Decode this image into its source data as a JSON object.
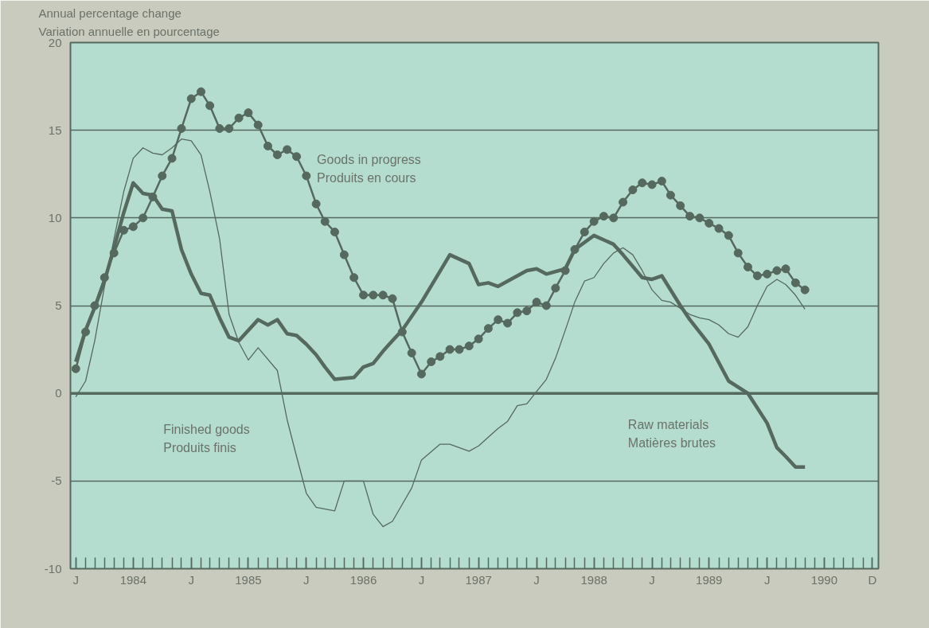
{
  "chart_data": {
    "type": "line",
    "ylabel": "Annual percentage change\nVariation annuelle en pourcentage",
    "xlim": [
      "1983-12-15",
      "1990-12-20"
    ],
    "xticks": [
      {
        "value": "1984-01",
        "label": "J"
      },
      {
        "value": "1985-01",
        "label": "J"
      },
      {
        "value": "1986-01",
        "label": "J"
      },
      {
        "value": "1987-01",
        "label": "J"
      },
      {
        "value": "1988-01",
        "label": "J"
      },
      {
        "value": "1989-01",
        "label": "J"
      },
      {
        "value": "1990-01",
        "label": "J"
      },
      {
        "value": "1990-12",
        "label": "D"
      },
      {
        "value": "1984-07",
        "label": "1984"
      },
      {
        "value": "1985-07",
        "label": "1985"
      },
      {
        "value": "1986-07",
        "label": "1986"
      },
      {
        "value": "1987-07",
        "label": "1987"
      },
      {
        "value": "1988-07",
        "label": "1988"
      },
      {
        "value": "1989-07",
        "label": "1989"
      },
      {
        "value": "1990-07",
        "label": "1990"
      }
    ],
    "ylim": [
      -10,
      20
    ],
    "yticks": [
      -10,
      -5,
      0,
      5,
      10,
      15,
      20
    ],
    "grid": "y",
    "ref_lines": [
      {
        "axis": "y",
        "value": 0,
        "color": "#56695f"
      }
    ],
    "series": [
      {
        "color": "#56695f",
        "marker": "circle",
        "line_style": "solid",
        "x": [
          "1984-01",
          "1984-02",
          "1984-03",
          "1984-04",
          "1984-05",
          "1984-06",
          "1984-07",
          "1984-08",
          "1984-09",
          "1984-10",
          "1984-11",
          "1984-12",
          "1985-01",
          "1985-02",
          "1985-03",
          "1985-04",
          "1985-05",
          "1985-06",
          "1985-07",
          "1985-08",
          "1985-09",
          "1985-10",
          "1985-11",
          "1985-12",
          "1986-01",
          "1986-02",
          "1986-03",
          "1986-04",
          "1986-05",
          "1986-06",
          "1986-07",
          "1986-08",
          "1986-09",
          "1986-10",
          "1986-11",
          "1986-12",
          "1987-01",
          "1987-02",
          "1987-03",
          "1987-04",
          "1987-05",
          "1987-06",
          "1987-07",
          "1987-08",
          "1987-09",
          "1987-10",
          "1987-11",
          "1987-12",
          "1988-01",
          "1988-02",
          "1988-03",
          "1988-04",
          "1988-05",
          "1988-06",
          "1988-07",
          "1988-08",
          "1988-09",
          "1988-10",
          "1988-11",
          "1988-12",
          "1989-01",
          "1989-02",
          "1989-03",
          "1989-04",
          "1989-05",
          "1989-06",
          "1989-07",
          "1989-08",
          "1989-09",
          "1989-10",
          "1989-11",
          "1989-12",
          "1990-01",
          "1990-02",
          "1990-03",
          "1990-04",
          "1990-05"
        ],
        "values": [
          1.4,
          3.5,
          5.0,
          6.6,
          8.0,
          9.3,
          9.5,
          10.0,
          11.2,
          12.4,
          13.4,
          15.1,
          16.8,
          17.2,
          16.4,
          15.1,
          15.1,
          15.7,
          16.0,
          15.3,
          14.1,
          13.6,
          13.9,
          13.5,
          12.4,
          10.8,
          9.8,
          9.2,
          7.9,
          6.6,
          5.6,
          5.6,
          5.6,
          5.4,
          3.5,
          2.3,
          1.1,
          1.8,
          2.1,
          2.5,
          2.5,
          2.7,
          3.1,
          3.7,
          4.2,
          4.0,
          4.6,
          4.7,
          5.2,
          5.0,
          6.0,
          7.0,
          8.2,
          9.2,
          9.8,
          10.1,
          10.0,
          10.9,
          11.6,
          12.0,
          11.9,
          12.1,
          11.3,
          10.7,
          10.1,
          10.0,
          9.7,
          9.4,
          9.0,
          8.0,
          7.2,
          6.7,
          6.8,
          7.0,
          7.1,
          6.3,
          5.9
        ]
      },
      {
        "color": "#56695f",
        "marker": "none",
        "line_style": "solid",
        "x": [
          "1984-01",
          "1984-02",
          "1984-03",
          "1984-04",
          "1984-05",
          "1984-06",
          "1984-07",
          "1984-08",
          "1984-09",
          "1984-10",
          "1984-11",
          "1984-12",
          "1985-01",
          "1985-02",
          "1985-03",
          "1985-04",
          "1985-05",
          "1985-06",
          "1985-08",
          "1985-09",
          "1985-10",
          "1985-11",
          "1985-12",
          "1986-01",
          "1986-02",
          "1986-03",
          "1986-04",
          "1986-06",
          "1986-07",
          "1986-08",
          "1986-09",
          "1986-10",
          "1986-11",
          "1987-01",
          "1987-04",
          "1987-06",
          "1987-07",
          "1987-08",
          "1987-09",
          "1987-12",
          "1988-01",
          "1988-02",
          "1988-04",
          "1988-05",
          "1988-07",
          "1988-09",
          "1988-10",
          "1988-12",
          "1989-01",
          "1989-02",
          "1989-04",
          "1989-05",
          "1989-07",
          "1989-09",
          "1989-11",
          "1990-01",
          "1990-02",
          "1990-03",
          "1990-04",
          "1990-05"
        ],
        "values": [
          1.8,
          3.6,
          4.9,
          6.4,
          8.3,
          10.3,
          12.0,
          11.4,
          11.3,
          10.5,
          10.4,
          8.2,
          6.8,
          5.7,
          5.6,
          4.3,
          3.2,
          3.0,
          4.2,
          3.9,
          4.2,
          3.4,
          3.3,
          2.8,
          2.2,
          1.5,
          0.8,
          0.9,
          1.5,
          1.7,
          2.4,
          3.0,
          3.6,
          5.2,
          7.9,
          7.4,
          6.2,
          6.3,
          6.1,
          7.0,
          7.1,
          6.8,
          7.1,
          8.2,
          9.0,
          8.5,
          7.9,
          6.6,
          6.5,
          6.7,
          5.0,
          4.2,
          2.8,
          0.7,
          0.0,
          -1.7,
          -3.1,
          -3.6,
          -4.2,
          -4.2
        ]
      },
      {
        "color": "#56695f",
        "marker": "none",
        "line_style": "solid",
        "x": [
          "1984-01",
          "1984-02",
          "1984-03",
          "1984-04",
          "1984-05",
          "1984-06",
          "1984-07",
          "1984-08",
          "1984-09",
          "1984-10",
          "1984-11",
          "1984-12",
          "1985-01",
          "1985-02",
          "1985-03",
          "1985-04",
          "1985-05",
          "1985-06",
          "1985-07",
          "1985-08",
          "1985-10",
          "1985-11",
          "1985-12",
          "1986-01",
          "1986-02",
          "1986-04",
          "1986-05",
          "1986-07",
          "1986-08",
          "1986-09",
          "1986-10",
          "1986-12",
          "1987-01",
          "1987-03",
          "1987-04",
          "1987-06",
          "1987-07",
          "1987-09",
          "1987-10",
          "1987-11",
          "1987-12",
          "1988-01",
          "1988-02",
          "1988-03",
          "1988-04",
          "1988-05",
          "1988-06",
          "1988-07",
          "1988-08",
          "1988-09",
          "1988-10",
          "1988-11",
          "1988-12",
          "1989-01",
          "1989-02",
          "1989-03",
          "1989-05",
          "1989-06",
          "1989-07",
          "1989-08",
          "1989-09",
          "1989-10",
          "1989-11",
          "1989-12",
          "1990-01",
          "1990-02",
          "1990-03",
          "1990-04",
          "1990-05"
        ],
        "values": [
          -0.2,
          0.7,
          3.0,
          6.1,
          8.8,
          11.5,
          13.4,
          14.0,
          13.7,
          13.6,
          14.0,
          14.5,
          14.4,
          13.6,
          11.5,
          8.8,
          4.5,
          2.9,
          1.9,
          2.6,
          1.3,
          -1.5,
          -3.6,
          -5.7,
          -6.5,
          -6.7,
          -5.0,
          -5.0,
          -6.9,
          -7.6,
          -7.3,
          -5.4,
          -3.8,
          -2.9,
          -2.9,
          -3.3,
          -3.0,
          -2.0,
          -1.6,
          -0.7,
          -0.6,
          0.1,
          0.8,
          2.0,
          3.6,
          5.2,
          6.4,
          6.6,
          7.4,
          8.0,
          8.3,
          7.9,
          7.0,
          5.9,
          5.3,
          5.2,
          4.5,
          4.3,
          4.2,
          3.9,
          3.4,
          3.2,
          3.8,
          5.0,
          6.1,
          6.5,
          6.2,
          5.6,
          4.8
        ]
      }
    ],
    "annotations": [
      "Goods in progress\nProduits en cours",
      "Finished goods\nProduits finis",
      "Raw materials\nMatières brutes"
    ]
  }
}
